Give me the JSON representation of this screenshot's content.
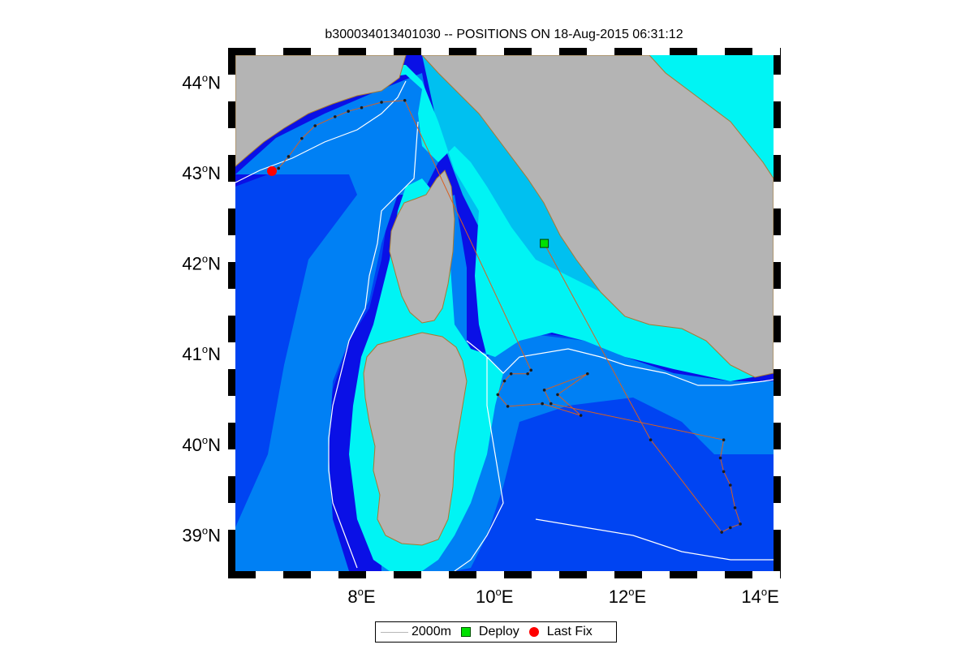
{
  "title": "b300034013401030 -- POSITIONS ON 18-Aug-2015 06:31:12",
  "axes": {
    "lon_ticks": [
      {
        "value": 8,
        "label": "8",
        "unit": "E"
      },
      {
        "value": 10,
        "label": "10",
        "unit": "E"
      },
      {
        "value": 12,
        "label": "12",
        "unit": "E"
      },
      {
        "value": 14,
        "label": "14",
        "unit": "E"
      }
    ],
    "lat_ticks": [
      {
        "value": 39,
        "label": "39",
        "unit": "N"
      },
      {
        "value": 40,
        "label": "40",
        "unit": "N"
      },
      {
        "value": 41,
        "label": "41",
        "unit": "N"
      },
      {
        "value": 42,
        "label": "42",
        "unit": "N"
      },
      {
        "value": 43,
        "label": "43",
        "unit": "N"
      },
      {
        "value": 44,
        "label": "44",
        "unit": "N"
      }
    ],
    "degree_symbol": "o",
    "lon_range": [
      6.1,
      14.2
    ],
    "lat_range": [
      38.6,
      44.3
    ]
  },
  "legend": {
    "items": [
      {
        "label": "2000m",
        "symbol": "line",
        "color": "#c0c0c0"
      },
      {
        "label": "Deploy",
        "symbol": "square",
        "color": "#00e000"
      },
      {
        "label": "Last Fix",
        "symbol": "circle",
        "color": "#ff0000"
      }
    ]
  },
  "markers": {
    "deploy": {
      "lon": 10.75,
      "lat": 42.22
    },
    "last_fix": {
      "lon": 6.65,
      "lat": 43.02
    }
  },
  "track": [
    [
      10.75,
      42.22
    ],
    [
      12.35,
      40.05
    ],
    [
      13.42,
      39.03
    ],
    [
      13.55,
      39.08
    ],
    [
      13.7,
      39.12
    ],
    [
      13.62,
      39.3
    ],
    [
      13.55,
      39.55
    ],
    [
      13.45,
      39.7
    ],
    [
      13.4,
      39.85
    ],
    [
      13.45,
      40.05
    ],
    [
      10.85,
      40.45
    ],
    [
      10.75,
      40.6
    ],
    [
      11.4,
      40.78
    ],
    [
      10.95,
      40.55
    ],
    [
      11.3,
      40.32
    ],
    [
      10.72,
      40.45
    ],
    [
      10.2,
      40.42
    ],
    [
      10.05,
      40.55
    ],
    [
      10.15,
      40.7
    ],
    [
      10.25,
      40.78
    ],
    [
      10.5,
      40.78
    ],
    [
      10.55,
      40.82
    ],
    [
      8.65,
      43.8
    ],
    [
      8.3,
      43.78
    ],
    [
      8.0,
      43.72
    ],
    [
      7.8,
      43.68
    ],
    [
      7.6,
      43.62
    ],
    [
      7.3,
      43.52
    ],
    [
      7.1,
      43.38
    ],
    [
      6.9,
      43.18
    ],
    [
      6.75,
      43.05
    ],
    [
      6.65,
      43.02
    ]
  ],
  "colors": {
    "land": "#b4b4b4",
    "coastline": "#a87a30",
    "shelf": "#00f4f4",
    "slope_mid": "#00c0f0",
    "slope_deep": "#0080f4",
    "deep": "#0044f2",
    "abyss": "#0a10e6",
    "track": "#d86020",
    "fix_dot": "#1a1a1a"
  }
}
